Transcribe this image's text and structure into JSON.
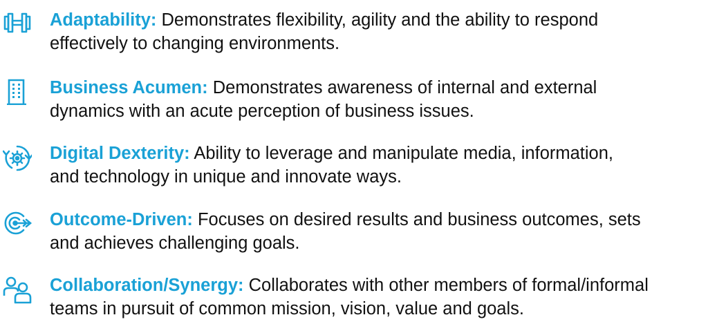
{
  "accent_color": "#1aa1d6",
  "items": [
    {
      "icon": "dumbbell-icon",
      "term": "Adaptability:",
      "line1": "Demonstrates flexibility, agility and the ability to respond",
      "line2": "effectively to changing environments."
    },
    {
      "icon": "building-icon",
      "term": "Business Acumen:",
      "line1": "Demonstrates awareness of internal and external",
      "line2": "dynamics with an acute perception of business issues."
    },
    {
      "icon": "gear-cycle-icon",
      "term": "Digital Dexterity:",
      "line1": "Ability to leverage and manipulate media, information,",
      "line2": "and technology in unique and innovate ways."
    },
    {
      "icon": "target-arrow-icon",
      "term": "Outcome-Driven:",
      "line1": "Focuses on desired results and business outcomes, sets",
      "line2": "and achieves challenging goals."
    },
    {
      "icon": "people-icon",
      "term": "Collaboration/Synergy:",
      "line1": "Collaborates with other members of formal/informal",
      "line2": "teams in pursuit of common mission, vision, value and goals."
    }
  ]
}
